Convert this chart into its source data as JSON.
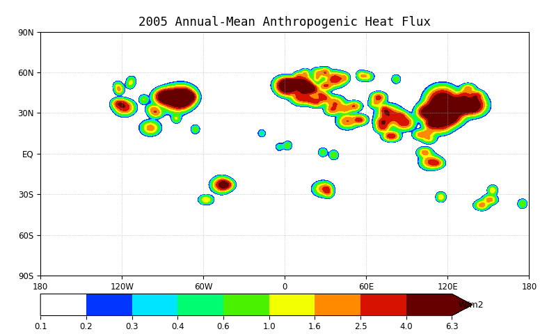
{
  "title": "2005 Annual-Mean Anthropogenic Heat Flux",
  "colorbar_levels": [
    0.1,
    0.2,
    0.3,
    0.4,
    0.6,
    1.0,
    1.6,
    2.5,
    4.0,
    6.3
  ],
  "colorbar_label": "W/m2",
  "lat_labels": [
    "90N",
    "60N",
    "30N",
    "EQ",
    "30S",
    "60S",
    "90S"
  ],
  "lat_ticks": [
    90,
    60,
    30,
    0,
    -30,
    -60,
    -90
  ],
  "lon_labels": [
    "180",
    "120W",
    "60W",
    "0",
    "60E",
    "120E",
    "180"
  ],
  "lon_ticks": [
    -180,
    -120,
    -60,
    0,
    60,
    120,
    180
  ],
  "background_color": "#ffffff",
  "hotspots": [
    [
      -74,
      41,
      6.0,
      4,
      3
    ],
    [
      -87,
      42,
      5.5,
      4,
      3
    ],
    [
      -77,
      39,
      5.0,
      4,
      3
    ],
    [
      -71,
      42,
      4.5,
      3,
      2
    ],
    [
      -80,
      40,
      4.0,
      6,
      5
    ],
    [
      -75,
      43,
      3.5,
      5,
      4
    ],
    [
      -83,
      42,
      3.5,
      4,
      3
    ],
    [
      -90,
      42,
      3.0,
      4,
      3
    ],
    [
      -118,
      34,
      3.5,
      4,
      3
    ],
    [
      -122,
      37,
      3.0,
      3,
      2
    ],
    [
      -122,
      47,
      1.5,
      2,
      2
    ],
    [
      -104,
      40,
      1.0,
      2,
      2
    ],
    [
      -97,
      33,
      1.5,
      3,
      2
    ],
    [
      -95,
      30,
      2.0,
      3,
      2
    ],
    [
      -99,
      19,
      2.0,
      4,
      3
    ],
    [
      -79,
      44,
      1.5,
      2,
      2
    ],
    [
      -73,
      45,
      1.5,
      2,
      2
    ],
    [
      -123,
      50,
      1.0,
      2,
      2
    ],
    [
      -113,
      54,
      0.8,
      2,
      2
    ],
    [
      -114,
      51,
      0.8,
      2,
      2
    ],
    [
      -80,
      26,
      1.0,
      2,
      2
    ],
    [
      -66,
      18,
      0.8,
      2,
      2
    ],
    [
      -58,
      -34,
      1.5,
      3,
      2
    ],
    [
      -47,
      -23,
      2.5,
      4,
      3
    ],
    [
      -43,
      -23,
      3.0,
      3,
      2
    ],
    [
      -46,
      -23,
      2.0,
      3,
      3
    ],
    [
      2,
      48,
      5.0,
      4,
      3
    ],
    [
      13,
      52,
      5.0,
      4,
      3
    ],
    [
      7,
      51,
      5.5,
      3,
      2
    ],
    [
      4,
      51,
      5.0,
      3,
      2
    ],
    [
      -0.1,
      51,
      5.0,
      4,
      3
    ],
    [
      4.5,
      52,
      4.0,
      3,
      2
    ],
    [
      12,
      42,
      3.5,
      4,
      3
    ],
    [
      15,
      50,
      3.5,
      3,
      2
    ],
    [
      14,
      48,
      3.0,
      3,
      2
    ],
    [
      16,
      48,
      3.0,
      3,
      2
    ],
    [
      20,
      48,
      2.5,
      3,
      2
    ],
    [
      19,
      47,
      2.5,
      3,
      2
    ],
    [
      23,
      38,
      2.5,
      3,
      2
    ],
    [
      18,
      40,
      2.0,
      3,
      2
    ],
    [
      26,
      44,
      2.0,
      3,
      2
    ],
    [
      30,
      50,
      2.5,
      3,
      2
    ],
    [
      37,
      55,
      3.5,
      4,
      3
    ],
    [
      30,
      60,
      2.0,
      2,
      2
    ],
    [
      25,
      60,
      1.5,
      3,
      2
    ],
    [
      15,
      59,
      1.5,
      2,
      2
    ],
    [
      10,
      57,
      1.5,
      2,
      2
    ],
    [
      5,
      52,
      1.5,
      3,
      2
    ],
    [
      24,
      56,
      1.5,
      2,
      2
    ],
    [
      44,
      56,
      1.5,
      2,
      2
    ],
    [
      60,
      57,
      1.5,
      3,
      2
    ],
    [
      56,
      58,
      1.0,
      2,
      2
    ],
    [
      82,
      55,
      0.8,
      2,
      2
    ],
    [
      37,
      37,
      2.5,
      4,
      3
    ],
    [
      29,
      41,
      2.5,
      3,
      2
    ],
    [
      35,
      32,
      2.0,
      3,
      2
    ],
    [
      46,
      24,
      2.5,
      4,
      3
    ],
    [
      55,
      25,
      3.0,
      3,
      2
    ],
    [
      51,
      35,
      2.5,
      3,
      2
    ],
    [
      44,
      33,
      2.0,
      3,
      2
    ],
    [
      67,
      37,
      1.5,
      3,
      2
    ],
    [
      69,
      42,
      1.5,
      3,
      2
    ],
    [
      69,
      41,
      1.5,
      3,
      2
    ],
    [
      77,
      28,
      3.5,
      5,
      4
    ],
    [
      88,
      23,
      3.5,
      4,
      3
    ],
    [
      72,
      23,
      3.0,
      3,
      2
    ],
    [
      80,
      13,
      2.0,
      3,
      2
    ],
    [
      77,
      13,
      2.0,
      3,
      2
    ],
    [
      72,
      19,
      2.5,
      3,
      2
    ],
    [
      85,
      28,
      2.0,
      3,
      2
    ],
    [
      75,
      31,
      1.5,
      2,
      2
    ],
    [
      73,
      33,
      1.5,
      2,
      2
    ],
    [
      121,
      31,
      6.0,
      6,
      5
    ],
    [
      116,
      40,
      6.0,
      6,
      5
    ],
    [
      114,
      23,
      5.0,
      5,
      4
    ],
    [
      120,
      30,
      5.0,
      5,
      4
    ],
    [
      113,
      34,
      4.5,
      5,
      4
    ],
    [
      117,
      32,
      4.5,
      5,
      4
    ],
    [
      112,
      27,
      3.5,
      4,
      3
    ],
    [
      106,
      30,
      3.5,
      4,
      3
    ],
    [
      104,
      31,
      3.5,
      4,
      3
    ],
    [
      108,
      22,
      3.0,
      3,
      2
    ],
    [
      121,
      25,
      3.0,
      3,
      2
    ],
    [
      127,
      37,
      4.5,
      4,
      3
    ],
    [
      129,
      35,
      4.0,
      4,
      3
    ],
    [
      130,
      33,
      3.5,
      3,
      2
    ],
    [
      139,
      36,
      6.0,
      5,
      4
    ],
    [
      135,
      35,
      4.0,
      4,
      3
    ],
    [
      137,
      35,
      4.0,
      3,
      2
    ],
    [
      141,
      43,
      2.5,
      3,
      2
    ],
    [
      135,
      48,
      2.0,
      3,
      2
    ],
    [
      132,
      43,
      2.5,
      3,
      2
    ],
    [
      100,
      14,
      2.0,
      3,
      2
    ],
    [
      106,
      11,
      1.5,
      3,
      2
    ],
    [
      107,
      -6,
      2.5,
      4,
      3
    ],
    [
      112,
      -7,
      2.0,
      3,
      2
    ],
    [
      106,
      16,
      1.5,
      3,
      2
    ],
    [
      103,
      1,
      2.0,
      3,
      2
    ],
    [
      28,
      -26,
      2.0,
      4,
      3
    ],
    [
      32,
      -29,
      1.5,
      2,
      2
    ],
    [
      31,
      -26,
      1.5,
      2,
      2
    ],
    [
      36,
      -1,
      1.0,
      2,
      2
    ],
    [
      151,
      -34,
      2.0,
      3,
      2
    ],
    [
      145,
      -38,
      2.0,
      3,
      2
    ],
    [
      153,
      -27,
      1.5,
      2,
      2
    ],
    [
      115,
      -32,
      1.5,
      2,
      2
    ],
    [
      175,
      -37,
      1.0,
      2,
      2
    ],
    [
      2,
      6,
      0.8,
      2,
      2
    ],
    [
      28,
      1,
      0.8,
      2,
      2
    ],
    [
      -17,
      15,
      0.5,
      2,
      2
    ],
    [
      -4,
      5,
      0.5,
      2,
      2
    ]
  ]
}
